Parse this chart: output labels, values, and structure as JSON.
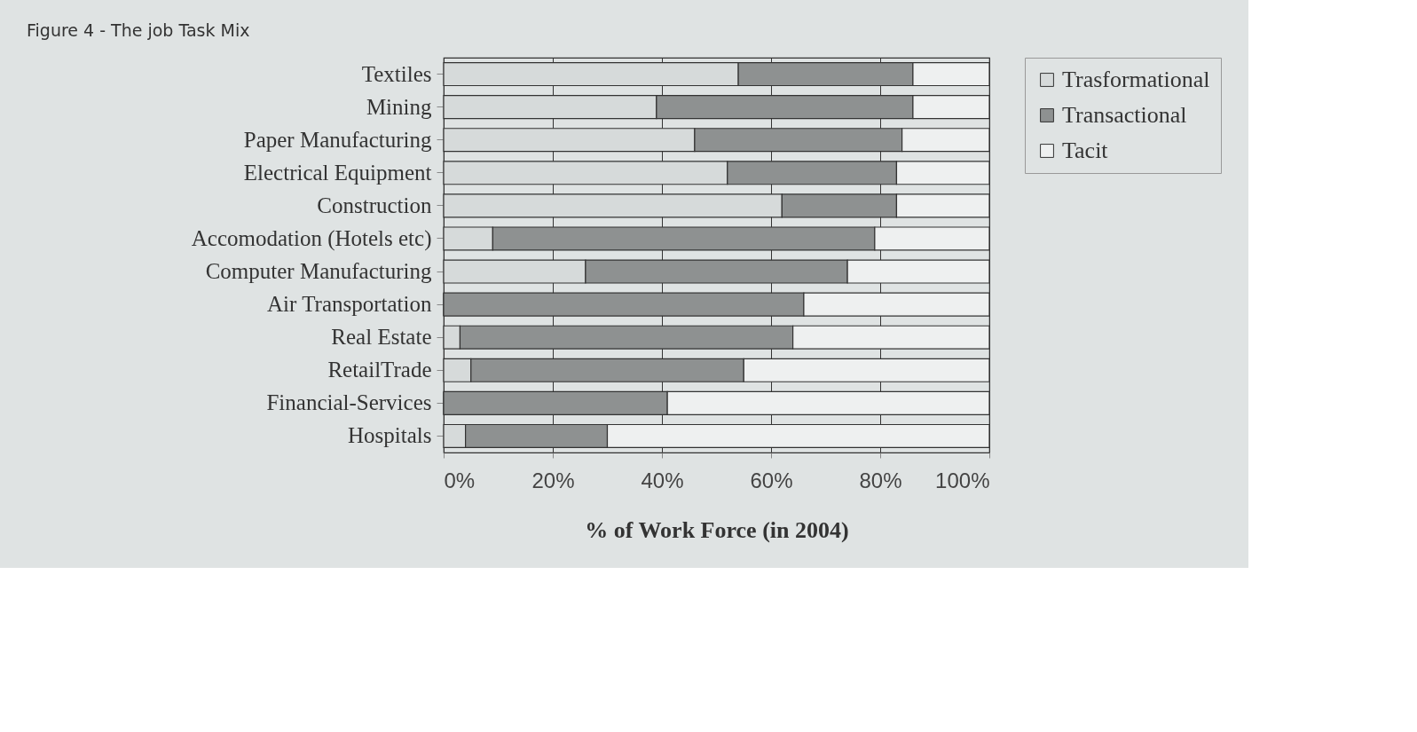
{
  "chart_data": {
    "type": "bar",
    "orientation": "horizontal",
    "stacked": true,
    "title": "Figure 4 - The job Task Mix",
    "xlabel": "% of Work Force (in 2004)",
    "categories": [
      "Textiles",
      "Mining",
      "Paper Manufacturing",
      "Electrical Equipment",
      "Construction",
      "Accomodation (Hotels etc)",
      "Computer Manufacturing",
      "Air Transportation",
      "Real Estate",
      "RetailTrade",
      "Financial-Services",
      "Hospitals"
    ],
    "series": [
      {
        "name": "Trasformational",
        "color": "#d6dada",
        "values": [
          54,
          39,
          46,
          52,
          62,
          9,
          26,
          0,
          3,
          5,
          0,
          4
        ]
      },
      {
        "name": "Transactional",
        "color": "#8e9191",
        "values": [
          32,
          47,
          38,
          31,
          21,
          70,
          48,
          66,
          61,
          50,
          41,
          26
        ]
      },
      {
        "name": "Tacit",
        "color": "#eef0f0",
        "values": [
          14,
          14,
          16,
          17,
          17,
          21,
          26,
          34,
          36,
          45,
          59,
          70
        ]
      }
    ],
    "xlim": [
      0,
      100
    ],
    "xticks": [
      {
        "value": 0,
        "label": "0%"
      },
      {
        "value": 20,
        "label": "20%"
      },
      {
        "value": 40,
        "label": "40%"
      },
      {
        "value": 60,
        "label": "60%"
      },
      {
        "value": 80,
        "label": "80%"
      },
      {
        "value": 100,
        "label": "100%"
      }
    ],
    "grid": "x",
    "legend": "right"
  }
}
